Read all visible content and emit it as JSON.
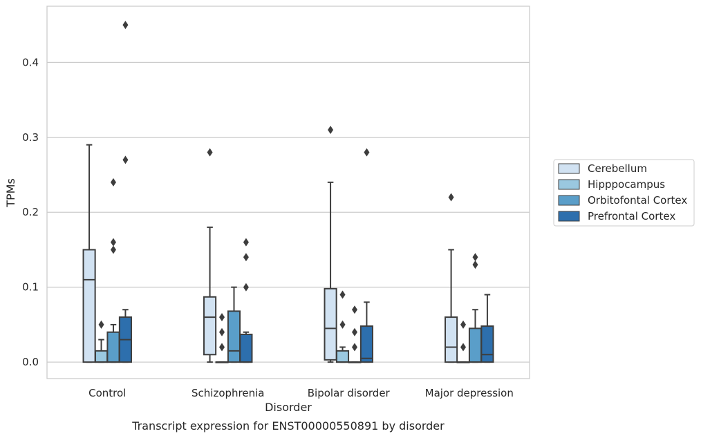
{
  "chart_data": {
    "type": "box",
    "title": "",
    "caption": "Transcript expression for ENST00000550891 by disorder",
    "xlabel": "Disorder",
    "ylabel": "TPMs",
    "ylim": [
      -0.022,
      0.475
    ],
    "yticks": [
      "0.0",
      "0.1",
      "0.2",
      "0.3",
      "0.4"
    ],
    "grid": "horizontal",
    "legend_position": "right",
    "categories": [
      "Control",
      "Schizophrenia",
      "Bipolar disorder",
      "Major depression"
    ],
    "series": [
      {
        "name": "Cerebellum",
        "color": "#d1e2f2",
        "boxes": [
          {
            "min": 0.0,
            "q1": 0.0,
            "median": 0.11,
            "q3": 0.15,
            "max": 0.29,
            "outliers": []
          },
          {
            "min": 0.0,
            "q1": 0.01,
            "median": 0.06,
            "q3": 0.087,
            "max": 0.18,
            "outliers": [
              0.28
            ]
          },
          {
            "min": 0.0,
            "q1": 0.003,
            "median": 0.045,
            "q3": 0.098,
            "max": 0.24,
            "outliers": [
              0.31
            ]
          },
          {
            "min": 0.0,
            "q1": 0.0,
            "median": 0.02,
            "q3": 0.06,
            "max": 0.15,
            "outliers": [
              0.22
            ]
          }
        ]
      },
      {
        "name": "Hipppocampus",
        "color": "#9ac8e0",
        "boxes": [
          {
            "min": 0.0,
            "q1": 0.0,
            "median": 0.0,
            "q3": 0.015,
            "max": 0.03,
            "outliers": [
              0.05
            ]
          },
          {
            "min": 0.0,
            "q1": 0.0,
            "median": 0.0,
            "q3": 0.0,
            "max": 0.0,
            "outliers": [
              0.02,
              0.04,
              0.06
            ]
          },
          {
            "min": 0.0,
            "q1": 0.0,
            "median": 0.0,
            "q3": 0.015,
            "max": 0.02,
            "outliers": [
              0.05,
              0.09
            ]
          },
          {
            "min": 0.0,
            "q1": 0.0,
            "median": 0.0,
            "q3": 0.0,
            "max": 0.0,
            "outliers": [
              0.02,
              0.05
            ]
          }
        ]
      },
      {
        "name": "Orbitofontal Cortex",
        "color": "#5a9ec9",
        "boxes": [
          {
            "min": 0.0,
            "q1": 0.0,
            "median": 0.0,
            "q3": 0.04,
            "max": 0.05,
            "outliers": [
              0.15,
              0.16,
              0.24
            ]
          },
          {
            "min": 0.0,
            "q1": 0.0,
            "median": 0.015,
            "q3": 0.068,
            "max": 0.1,
            "outliers": []
          },
          {
            "min": 0.0,
            "q1": 0.0,
            "median": 0.0,
            "q3": 0.0,
            "max": 0.0,
            "outliers": [
              0.02,
              0.04,
              0.07
            ]
          },
          {
            "min": 0.0,
            "q1": 0.0,
            "median": 0.0,
            "q3": 0.045,
            "max": 0.07,
            "outliers": [
              0.13,
              0.14
            ]
          }
        ]
      },
      {
        "name": "Prefrontal Cortex",
        "color": "#2d6fad",
        "boxes": [
          {
            "min": 0.0,
            "q1": 0.0,
            "median": 0.03,
            "q3": 0.06,
            "max": 0.07,
            "outliers": [
              0.27,
              0.45
            ]
          },
          {
            "min": 0.0,
            "q1": 0.0,
            "median": 0.0,
            "q3": 0.037,
            "max": 0.04,
            "outliers": [
              0.1,
              0.14,
              0.16
            ]
          },
          {
            "min": 0.0,
            "q1": 0.0,
            "median": 0.005,
            "q3": 0.048,
            "max": 0.08,
            "outliers": [
              0.28
            ]
          },
          {
            "min": 0.0,
            "q1": 0.0,
            "median": 0.01,
            "q3": 0.048,
            "max": 0.09,
            "outliers": []
          }
        ]
      }
    ]
  }
}
